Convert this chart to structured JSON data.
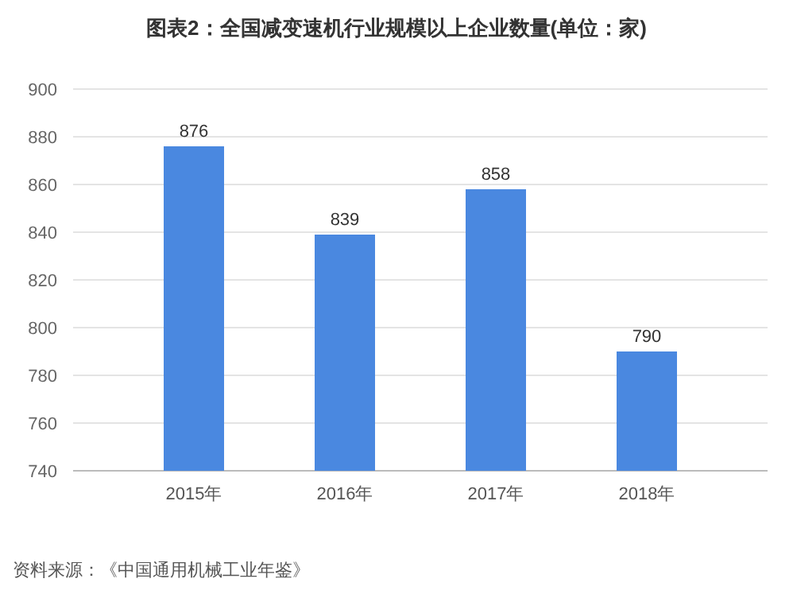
{
  "chart_data": {
    "type": "bar",
    "title": "图表2：全国减变速机行业规模以上企业数量(单位：家)",
    "categories": [
      "2015年",
      "2016年",
      "2017年",
      "2018年"
    ],
    "values": [
      876,
      839,
      858,
      790
    ],
    "color": "#4a88e0",
    "ylim": [
      740,
      900
    ],
    "yticks": [
      740,
      760,
      780,
      800,
      820,
      840,
      860,
      880,
      900
    ],
    "grid": "y",
    "data_labels": true,
    "annotations": [
      "资料来源：《中国通用机械工业年鉴》"
    ]
  }
}
